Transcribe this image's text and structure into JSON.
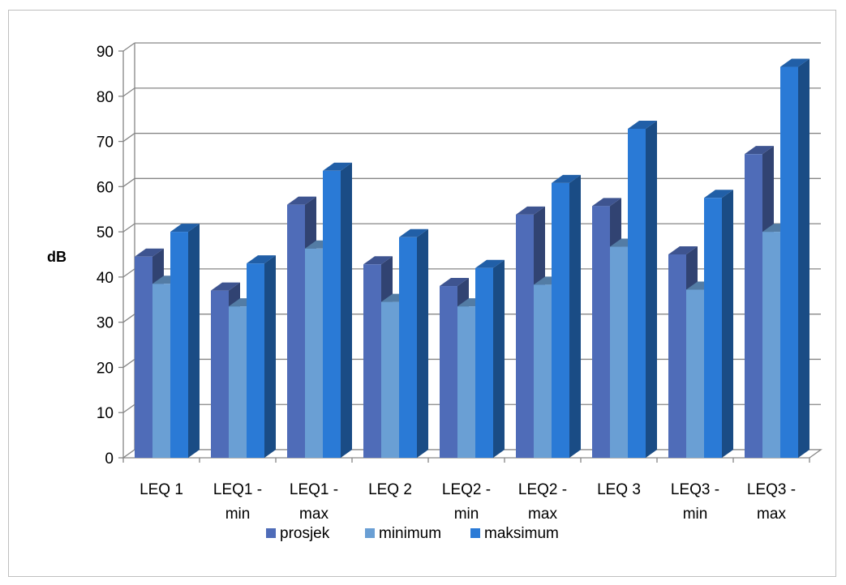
{
  "chart_data": {
    "type": "bar",
    "style": "3d-clustered-column",
    "categories": [
      [
        "LEQ 1"
      ],
      [
        "LEQ1 -",
        "min"
      ],
      [
        "LEQ1 -",
        "max"
      ],
      [
        "LEQ 2"
      ],
      [
        "LEQ2 -",
        "min"
      ],
      [
        "LEQ2 -",
        "max"
      ],
      [
        "LEQ 3"
      ],
      [
        "LEQ3 -",
        "min"
      ],
      [
        "LEQ3 -",
        "max"
      ]
    ],
    "series": [
      {
        "name": "prosjek",
        "color": "#4f6cb8",
        "values": [
          44.5,
          37,
          56,
          42.8,
          38,
          53.8,
          55.7,
          45,
          67.2
        ]
      },
      {
        "name": "minimum",
        "color": "#6a9fd4",
        "values": [
          38.5,
          33.5,
          46.3,
          34.5,
          33.5,
          38.3,
          46.7,
          37.2,
          50
        ]
      },
      {
        "name": "maksimum",
        "color": "#2a7ad6",
        "values": [
          50,
          43,
          63.5,
          48.8,
          42,
          60.8,
          72.8,
          57.5,
          86.5
        ]
      }
    ],
    "ylabel": "dB",
    "ylim": [
      0,
      90
    ],
    "yticks": [
      0,
      10,
      20,
      30,
      40,
      50,
      60,
      70,
      80,
      90
    ],
    "grid": true,
    "legend": "bottom"
  }
}
